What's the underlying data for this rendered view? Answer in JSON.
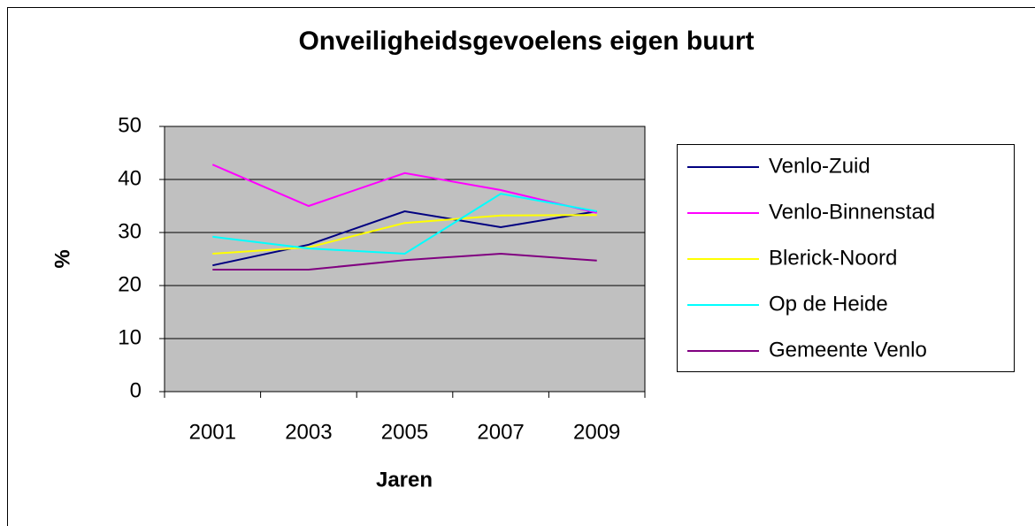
{
  "chart_data": {
    "type": "line",
    "title": "Onveiligheidsgevoelens eigen buurt",
    "x_label": "Jaren",
    "y_label": "%",
    "categories": [
      "2001",
      "2003",
      "2005",
      "2007",
      "2009"
    ],
    "series": [
      {
        "name": "Venlo-Zuid",
        "color": "#000080",
        "values": [
          23.8,
          27.7,
          34,
          31,
          34
        ]
      },
      {
        "name": "Venlo-Binnenstad",
        "color": "#ff00ff",
        "values": [
          42.8,
          35,
          41.2,
          38,
          33.7
        ]
      },
      {
        "name": "Blerick-Noord",
        "color": "#ffff00",
        "values": [
          26,
          27.2,
          31.8,
          33.2,
          33.3
        ]
      },
      {
        "name": "Op de Heide",
        "color": "#00ffff",
        "values": [
          29.2,
          27,
          26,
          37.3,
          34
        ]
      },
      {
        "name": "Gemeente Venlo",
        "color": "#800080",
        "values": [
          23,
          23,
          24.8,
          26,
          24.7
        ]
      }
    ],
    "ylim": [
      0,
      50
    ],
    "yticks": [
      0,
      10,
      20,
      30,
      40,
      50
    ],
    "grid": true,
    "legend": "right"
  }
}
